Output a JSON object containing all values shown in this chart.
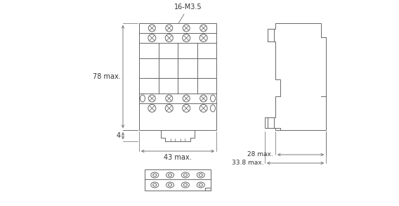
{
  "bg_color": "#ffffff",
  "line_color": "#666666",
  "font_size_label": 7,
  "font_size_small": 6.5,
  "label_16M3": "16-M3.5",
  "dim_78": "78 max.",
  "dim_43": "43 max.",
  "dim_4": "4",
  "dim_28": "28 max.",
  "dim_338": "33.8 max."
}
